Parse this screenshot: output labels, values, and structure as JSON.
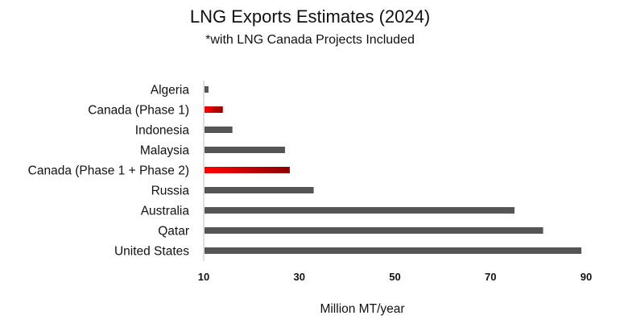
{
  "chart_data": {
    "type": "bar",
    "orientation": "horizontal",
    "title": "LNG Exports Estimates (2024)",
    "subtitle": "*with LNG Canada Projects Included",
    "xlabel": "Million MT/year",
    "ylabel": "",
    "xlim": [
      10,
      90
    ],
    "xticks": [
      10,
      30,
      50,
      70,
      90
    ],
    "grid": false,
    "legend": "none",
    "categories": [
      "Algeria",
      "Canada (Phase 1)",
      "Indonesia",
      "Malaysia",
      "Canada (Phase 1 + Phase 2)",
      "Russia",
      "Australia",
      "Qatar",
      "United States"
    ],
    "values": [
      11,
      14,
      16,
      27,
      28,
      33,
      75,
      81,
      89
    ],
    "highlight": [
      false,
      true,
      false,
      false,
      true,
      false,
      false,
      false,
      false
    ],
    "colors": {
      "default_bar": "#555555",
      "highlight_start": "#ff0000",
      "highlight_end": "#8b0000",
      "axis": "#bfbfbf"
    }
  }
}
